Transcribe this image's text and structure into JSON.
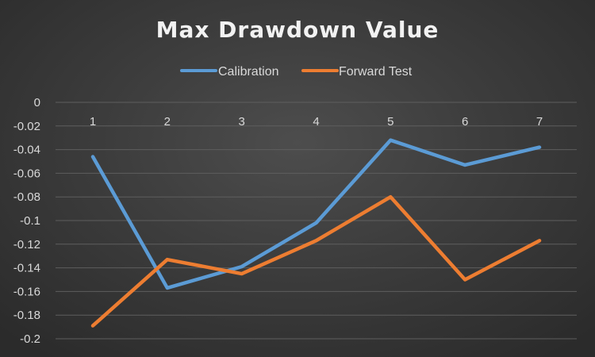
{
  "chart_data": {
    "type": "line",
    "title": "Max Drawdown Value",
    "categories": [
      "1",
      "2",
      "3",
      "4",
      "5",
      "6",
      "7"
    ],
    "series": [
      {
        "name": "Calibration",
        "color": "#5b9bd5",
        "values": [
          -0.046,
          -0.157,
          -0.139,
          -0.102,
          -0.032,
          -0.053,
          -0.038
        ]
      },
      {
        "name": "Forward Test",
        "color": "#ed7d31",
        "values": [
          -0.189,
          -0.133,
          -0.145,
          -0.117,
          -0.08,
          -0.15,
          -0.117
        ]
      }
    ],
    "ylim": [
      -0.2,
      0
    ],
    "yticks": [
      "0",
      "-0.02",
      "-0.04",
      "-0.06",
      "-0.08",
      "-0.1",
      "-0.12",
      "-0.14",
      "-0.16",
      "-0.18",
      "-0.2"
    ],
    "grid": true,
    "legend": "top"
  }
}
